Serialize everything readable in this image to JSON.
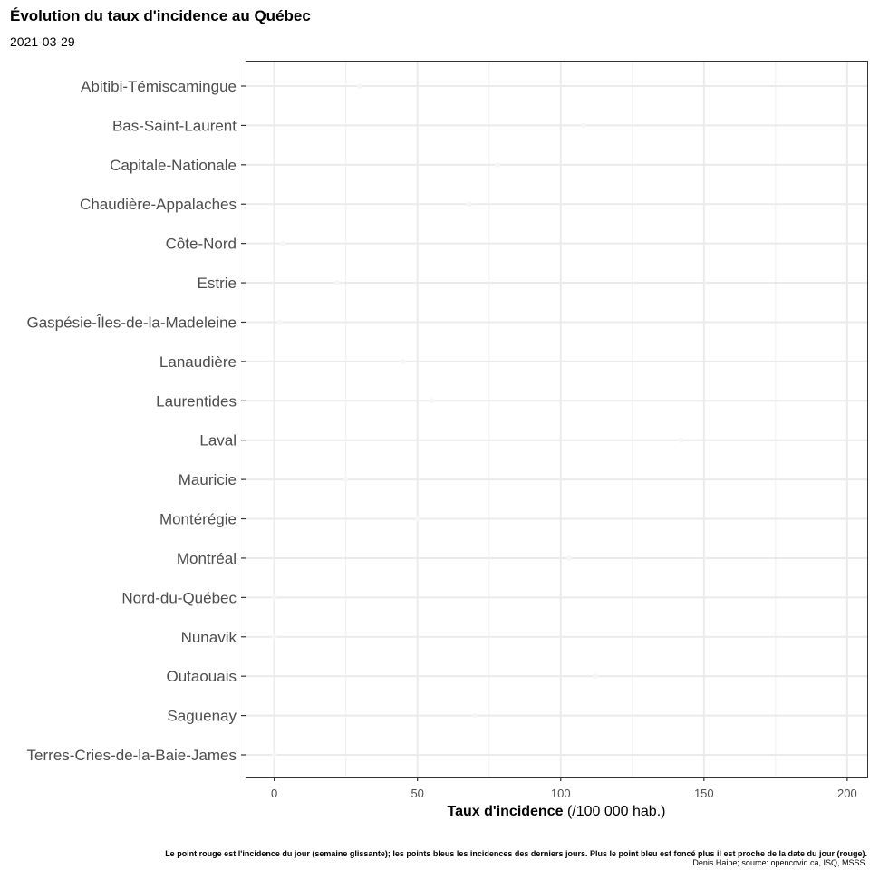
{
  "header": {
    "title": "Évolution du taux d'incidence au Québec",
    "subtitle": "2021-03-29"
  },
  "chart_data": {
    "type": "scatter",
    "title": "Évolution du taux d'incidence au Québec",
    "subtitle": "2021-03-29",
    "xlabel_bold": "Taux d'incidence",
    "xlabel_rest": " (/100 000 hab.)",
    "ylabel": "",
    "xlim": [
      -10,
      207
    ],
    "x_ticks": [
      0,
      50,
      100,
      150,
      200
    ],
    "x_minor_ticks": [
      25,
      75,
      125,
      175
    ],
    "grid": true,
    "categories": [
      "Abitibi-Témiscamingue",
      "Bas-Saint-Laurent",
      "Capitale-Nationale",
      "Chaudière-Appalaches",
      "Côte-Nord",
      "Estrie",
      "Gaspésie-Îles-de-la-Madeleine",
      "Lanaudière",
      "Laurentides",
      "Laval",
      "Mauricie",
      "Montérégie",
      "Montréal",
      "Nord-du-Québec",
      "Nunavik",
      "Outaouais",
      "Saguenay",
      "Terres-Cries-de-la-Baie-James"
    ],
    "series": [
      {
        "values": [
          30,
          108,
          78,
          68,
          3,
          22,
          2,
          45,
          55,
          142,
          25,
          50,
          103,
          0,
          0,
          112,
          70,
          0
        ]
      }
    ],
    "caption": [
      "Le point rouge est l'incidence du jour (semaine glissante); les points bleus les incidences des derniers jours. Plus le point bleu est foncé plus il est proche de la date du jour (rouge).",
      "Denis Haine; source: opencovid.ca, ISQ, MSSS."
    ]
  },
  "colors": {
    "panel_border": "#333333",
    "grid_major": "#ebebeb",
    "grid_minor": "#f2f2f2",
    "axis_text": "#4d4d4d",
    "faint_point": "#f6f6f6"
  }
}
